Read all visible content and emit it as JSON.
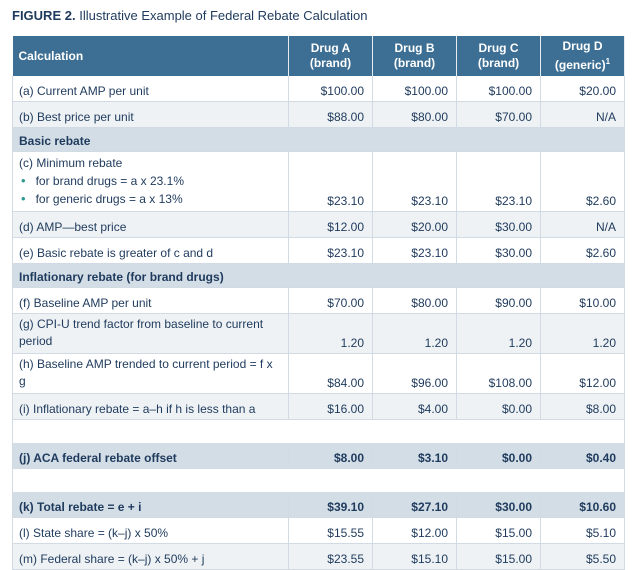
{
  "figure": {
    "label": "FIGURE 2.",
    "title": "Illustrative Example of Federal Rebate Calculation"
  },
  "header": {
    "col0": "Calculation",
    "drugs": [
      {
        "name": "Drug A",
        "type": "(brand)"
      },
      {
        "name": "Drug B",
        "type": "(brand)"
      },
      {
        "name": "Drug C",
        "type": "(brand)"
      },
      {
        "name": "Drug D",
        "type": "(generic)",
        "footnote": "1"
      }
    ]
  },
  "rows": {
    "a": {
      "label": "(a) Current AMP per unit",
      "values": [
        "$100.00",
        "$100.00",
        "$100.00",
        "$20.00"
      ]
    },
    "b": {
      "label": "(b) Best price per unit",
      "values": [
        "$88.00",
        "$80.00",
        "$70.00",
        "N/A"
      ]
    },
    "section1": "Basic rebate",
    "c": {
      "label": "(c) Minimum rebate",
      "sub1": "for brand drugs = a x 23.1%",
      "sub2": "for generic drugs = a x 13%",
      "values": [
        "$23.10",
        "$23.10",
        "$23.10",
        "$2.60"
      ]
    },
    "d": {
      "label": "(d) AMP—best price",
      "values": [
        "$12.00",
        "$20.00",
        "$30.00",
        "N/A"
      ]
    },
    "e": {
      "label": "(e) Basic rebate is greater of c and d",
      "values": [
        "$23.10",
        "$23.10",
        "$30.00",
        "$2.60"
      ]
    },
    "section2": "Inflationary rebate (for brand drugs)",
    "f": {
      "label": "(f) Baseline AMP per unit",
      "values": [
        "$70.00",
        "$80.00",
        "$90.00",
        "$10.00"
      ]
    },
    "g": {
      "label": "(g) CPI-U trend factor from baseline to current period",
      "values": [
        "1.20",
        "1.20",
        "1.20",
        "1.20"
      ]
    },
    "h": {
      "label": "(h) Baseline AMP trended to current period = f x g",
      "values": [
        "$84.00",
        "$96.00",
        "$108.00",
        "$12.00"
      ]
    },
    "i": {
      "label": "(i) Inflationary rebate = a–h if h is less than a",
      "values": [
        "$16.00",
        "$4.00",
        "$0.00",
        "$8.00"
      ]
    },
    "j": {
      "label": "(j) ACA federal rebate offset",
      "values": [
        "$8.00",
        "$3.10",
        "$0.00",
        "$0.40"
      ]
    },
    "k": {
      "label": "(k) Total rebate = e + i",
      "values": [
        "$39.10",
        "$27.10",
        "$30.00",
        "$10.60"
      ]
    },
    "l": {
      "label": "(l) State share = (k–j) x 50%",
      "values": [
        "$15.55",
        "$12.00",
        "$15.00",
        "$5.10"
      ]
    },
    "m": {
      "label": "(m) Federal share = (k–j) x 50% + j",
      "values": [
        "$23.55",
        "$15.10",
        "$15.00",
        "$5.50"
      ]
    }
  },
  "colors": {
    "header_bg": "#3d6e93",
    "section_bg": "#d3dde6",
    "row_shade": "#eef2f5",
    "text": "#1e3a5c",
    "bullet": "#2e9a8e"
  }
}
